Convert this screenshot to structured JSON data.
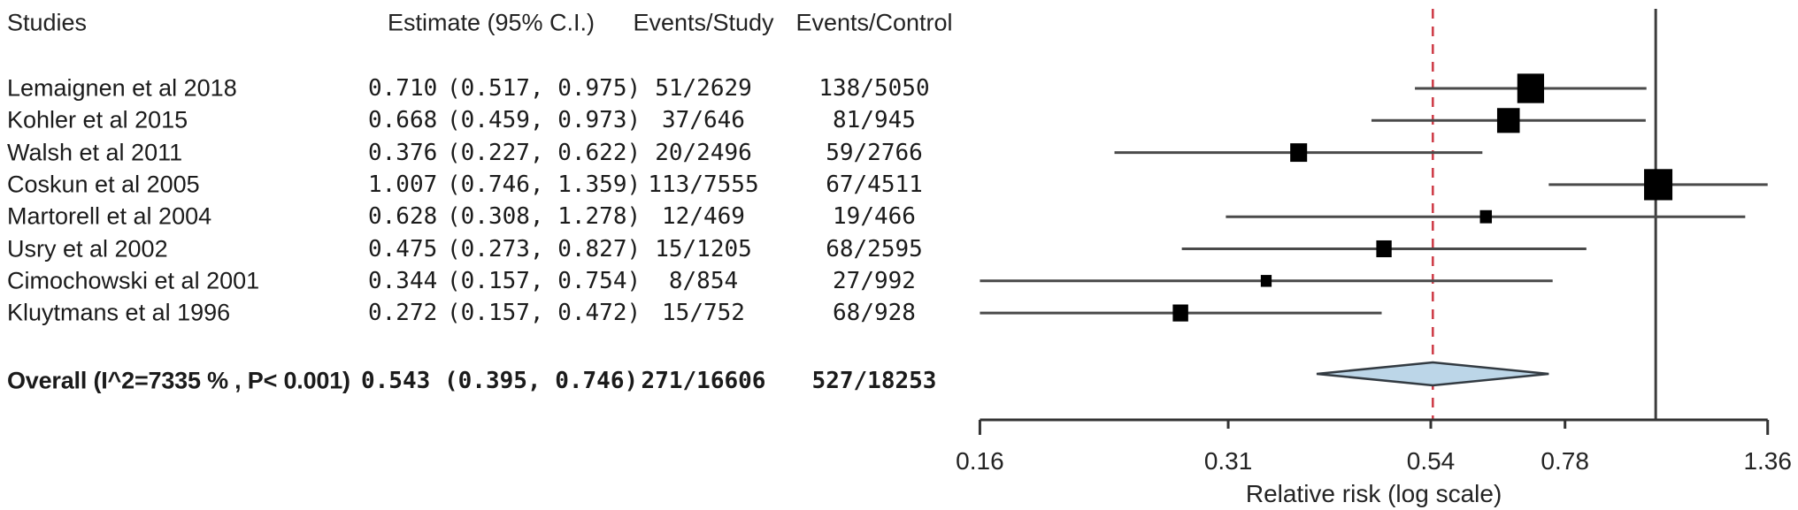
{
  "table": {
    "headers": {
      "studies": "Studies",
      "estimate": "Estimate (95% C.I.)",
      "events_study": "Events/Study",
      "events_control": "Events/Control"
    }
  },
  "studies": [
    {
      "name": "Lemaignen et al 2018",
      "estimate": "0.710",
      "ci": "(0.517, 0.975)",
      "events_study": "51/2629",
      "events_control": "138/5050"
    },
    {
      "name": "Kohler et al 2015",
      "estimate": "0.668",
      "ci": "(0.459, 0.973)",
      "events_study": "37/646",
      "events_control": "81/945"
    },
    {
      "name": "Walsh et al 2011",
      "estimate": "0.376",
      "ci": "(0.227, 0.622)",
      "events_study": "20/2496",
      "events_control": "59/2766"
    },
    {
      "name": "Coskun et al 2005",
      "estimate": "1.007",
      "ci": "(0.746, 1.359)",
      "events_study": "113/7555",
      "events_control": "67/4511"
    },
    {
      "name": "Martorell et al 2004",
      "estimate": "0.628",
      "ci": "(0.308, 1.278)",
      "events_study": "12/469",
      "events_control": "19/466"
    },
    {
      "name": "Usry et al 2002",
      "estimate": "0.475",
      "ci": "(0.273, 0.827)",
      "events_study": "15/1205",
      "events_control": "68/2595"
    },
    {
      "name": "Cimochowski et al 2001",
      "estimate": "0.344",
      "ci": "(0.157, 0.754)",
      "events_study": "8/854",
      "events_control": "27/992"
    },
    {
      "name": "Kluytmans et al 1996",
      "estimate": "0.272",
      "ci": "(0.157, 0.472)",
      "events_study": "15/752",
      "events_control": "68/928"
    }
  ],
  "overall": {
    "label": "Overall (I^2=7335 % , P< 0.001)",
    "estimate": "0.543",
    "ci": "(0.395, 0.746)",
    "events_study": "271/16606",
    "events_control": "527/18253"
  },
  "chart_data": {
    "type": "forest",
    "x_axis": {
      "label": "Relative risk (log scale)",
      "scale": "log",
      "min": 0.157,
      "max": 1.359,
      "ticks": [
        {
          "value": 0.157,
          "label": "0.16"
        },
        {
          "value": 0.31,
          "label": "0.31"
        },
        {
          "value": 0.54,
          "label": "0.54"
        },
        {
          "value": 0.78,
          "label": "0.78"
        },
        {
          "value": 1.359,
          "label": "1.36"
        }
      ]
    },
    "reference_lines": [
      {
        "value": 1.0,
        "style": "solid",
        "color": "#3d3d3d"
      },
      {
        "value": 0.543,
        "style": "dashed",
        "color": "#cf3f4a"
      }
    ],
    "series": [
      {
        "name": "Lemaignen et al 2018",
        "est": 0.71,
        "lo": 0.517,
        "hi": 0.975
      },
      {
        "name": "Kohler et al 2015",
        "est": 0.668,
        "lo": 0.459,
        "hi": 0.973
      },
      {
        "name": "Walsh et al 2011",
        "est": 0.376,
        "lo": 0.227,
        "hi": 0.622
      },
      {
        "name": "Coskun et al 2005",
        "est": 1.007,
        "lo": 0.746,
        "hi": 1.359
      },
      {
        "name": "Martorell et al 2004",
        "est": 0.628,
        "lo": 0.308,
        "hi": 1.278
      },
      {
        "name": "Usry et al 2002",
        "est": 0.475,
        "lo": 0.273,
        "hi": 0.827
      },
      {
        "name": "Cimochowski et al 2001",
        "est": 0.344,
        "lo": 0.157,
        "hi": 0.754
      },
      {
        "name": "Kluytmans et al 1996",
        "est": 0.272,
        "lo": 0.157,
        "hi": 0.472
      }
    ],
    "summary": {
      "name": "Overall",
      "est": 0.543,
      "lo": 0.395,
      "hi": 0.746,
      "shape": "diamond"
    }
  },
  "colors": {
    "text": "#1b1b1b",
    "ci_line": "#4a4a4a",
    "box": "#000000",
    "axis": "#333333",
    "null_line": "#3d3d3d",
    "overall_line": "#cf3f4a",
    "diamond_fill": "#bcd6e8",
    "diamond_stroke": "#333b42"
  }
}
